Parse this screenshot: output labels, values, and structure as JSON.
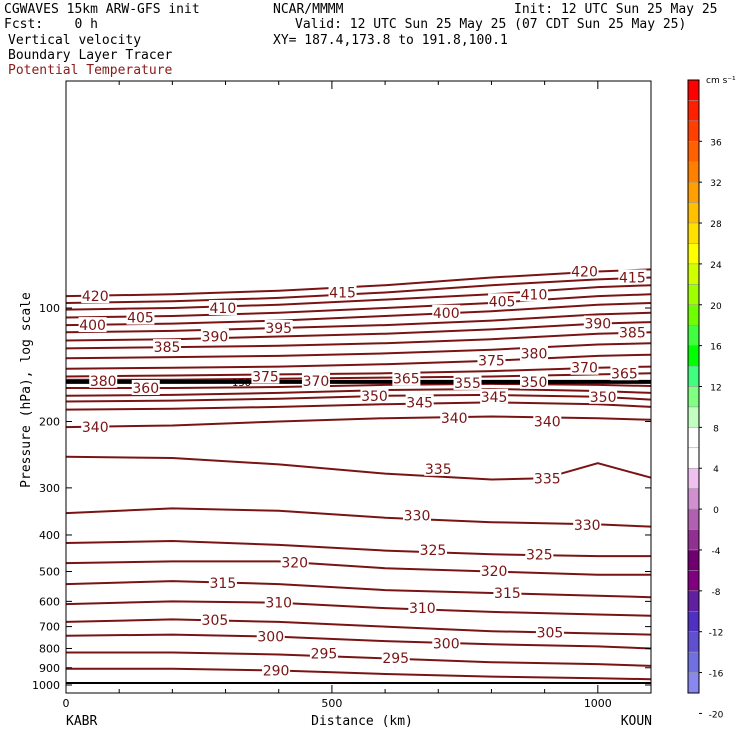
{
  "header": {
    "model": "CGWAVES 15km ARW-GFS init",
    "fcst": "Fcst:    0 h",
    "org": "NCAR/MMMM",
    "init": "Init: 12 UTC Sun 25 May 25",
    "valid": "Valid: 12 UTC Sun 25 May 25 (07 CDT Sun 25 May 25)",
    "xy": "XY= 187.4,173.8 to 191.8,100.1",
    "fields": [
      "Vertical velocity",
      "Boundary Layer Tracer",
      "Potential Temperature"
    ]
  },
  "colors": {
    "contour": "#7a1414",
    "tropopause": "#000000",
    "field3_label": "#8b1a1a"
  },
  "chart_data": {
    "type": "line",
    "title": "",
    "xlabel": "Distance (km)",
    "ylabel": "Pressure (hPa), log scale",
    "xlim": [
      0,
      1100
    ],
    "ylim": [
      1050,
      25
    ],
    "yscale": "log",
    "x_ticks": [
      0,
      500,
      1000
    ],
    "x_minor_step": 100,
    "y_ticks": [
      100,
      200,
      300,
      400,
      500,
      600,
      700,
      800,
      900,
      1000
    ],
    "left_endpoint": "KABR",
    "right_endpoint": "KOUN",
    "tropopause": {
      "x": [
        0,
        1100
      ],
      "y": [
        157,
        157
      ],
      "label": "150"
    },
    "series": [
      {
        "name": "420",
        "x": [
          0,
          200,
          400,
          600,
          800,
          1000,
          1100
        ],
        "y": [
          93,
          92,
          90,
          87,
          83,
          80,
          79
        ]
      },
      {
        "name": "415",
        "x": [
          0,
          200,
          400,
          600,
          800,
          1000,
          1100
        ],
        "y": [
          97,
          96,
          94,
          91,
          87,
          84,
          83
        ]
      },
      {
        "name": "410",
        "x": [
          0,
          200,
          400,
          600,
          800,
          1000,
          1100
        ],
        "y": [
          101,
          100,
          98,
          95,
          92,
          88,
          87
        ]
      },
      {
        "name": "405",
        "x": [
          0,
          200,
          400,
          600,
          800,
          1000,
          1100
        ],
        "y": [
          106,
          105,
          103,
          100,
          97,
          93,
          92
        ]
      },
      {
        "name": "400",
        "x": [
          0,
          200,
          400,
          600,
          800,
          1000,
          1100
        ],
        "y": [
          111,
          110,
          108,
          105,
          102,
          98,
          97
        ]
      },
      {
        "name": "395",
        "x": [
          0,
          200,
          400,
          600,
          800,
          1000,
          1100
        ],
        "y": [
          116,
          115,
          113,
          111,
          108,
          104,
          103
        ]
      },
      {
        "name": "390",
        "x": [
          0,
          200,
          400,
          600,
          800,
          1000,
          1100
        ],
        "y": [
          122,
          121,
          119,
          117,
          114,
          110,
          109
        ]
      },
      {
        "name": "385",
        "x": [
          0,
          200,
          400,
          600,
          800,
          1000,
          1100
        ],
        "y": [
          128,
          127,
          126,
          124,
          121,
          117,
          116
        ]
      },
      {
        "name": "380",
        "x": [
          0,
          200,
          400,
          600,
          800,
          1000,
          1100
        ],
        "y": [
          136,
          135,
          134,
          132,
          129,
          125,
          124
        ]
      },
      {
        "name": "375",
        "x": [
          0,
          200,
          400,
          600,
          800,
          1000,
          1100
        ],
        "y": [
          145,
          144,
          143,
          141,
          138,
          134,
          133
        ]
      },
      {
        "name": "370",
        "x": [
          0,
          200,
          400,
          600,
          800,
          1000,
          1100
        ],
        "y": [
          152,
          151,
          150,
          149,
          147,
          144,
          143
        ]
      },
      {
        "name": "365",
        "x": [
          0,
          200,
          400,
          600,
          800,
          1000,
          1100
        ],
        "y": [
          155,
          155,
          154,
          153,
          152,
          150,
          149
        ]
      },
      {
        "name": "360",
        "x": [
          0,
          200,
          400,
          600,
          800,
          1000,
          1100
        ],
        "y": [
          163,
          163,
          162,
          160,
          159,
          160,
          161
        ]
      },
      {
        "name": "355",
        "x": [
          0,
          200,
          400,
          600,
          800,
          1000,
          1100
        ],
        "y": [
          171,
          170,
          168,
          165,
          164,
          166,
          168
        ]
      },
      {
        "name": "350",
        "x": [
          0,
          200,
          400,
          600,
          800,
          1000,
          1100
        ],
        "y": [
          177,
          176,
          174,
          171,
          170,
          172,
          175
        ]
      },
      {
        "name": "345",
        "x": [
          0,
          200,
          400,
          600,
          800,
          1000,
          1100
        ],
        "y": [
          186,
          185,
          183,
          180,
          178,
          180,
          183
        ]
      },
      {
        "name": "340",
        "x": [
          0,
          200,
          400,
          600,
          800,
          1000,
          1100
        ],
        "y": [
          207,
          205,
          200,
          196,
          194,
          196,
          198
        ]
      },
      {
        "name": "335",
        "x": [
          0,
          200,
          400,
          600,
          800,
          900,
          1000,
          1100
        ],
        "y": [
          248,
          250,
          260,
          275,
          285,
          283,
          258,
          282
        ]
      },
      {
        "name": "330",
        "x": [
          0,
          200,
          400,
          600,
          800,
          1000,
          1100
        ],
        "y": [
          350,
          340,
          345,
          360,
          370,
          375,
          380
        ]
      },
      {
        "name": "325",
        "x": [
          0,
          200,
          400,
          600,
          800,
          1000,
          1100
        ],
        "y": [
          420,
          415,
          425,
          440,
          450,
          455,
          455
        ]
      },
      {
        "name": "320",
        "x": [
          0,
          200,
          400,
          600,
          800,
          1000,
          1100
        ],
        "y": [
          475,
          470,
          470,
          490,
          500,
          510,
          510
        ]
      },
      {
        "name": "315",
        "x": [
          0,
          200,
          400,
          600,
          800,
          1000,
          1100
        ],
        "y": [
          540,
          530,
          540,
          560,
          570,
          580,
          585
        ]
      },
      {
        "name": "310",
        "x": [
          0,
          200,
          400,
          600,
          800,
          1000,
          1100
        ],
        "y": [
          610,
          600,
          605,
          625,
          640,
          650,
          655
        ]
      },
      {
        "name": "305",
        "x": [
          0,
          200,
          400,
          600,
          800,
          1000,
          1100
        ],
        "y": [
          680,
          670,
          680,
          700,
          720,
          730,
          735
        ]
      },
      {
        "name": "300",
        "x": [
          0,
          200,
          400,
          600,
          800,
          1000,
          1100
        ],
        "y": [
          740,
          735,
          745,
          765,
          780,
          790,
          800
        ]
      },
      {
        "name": "295",
        "x": [
          0,
          200,
          400,
          600,
          800,
          1000,
          1100
        ],
        "y": [
          820,
          820,
          830,
          850,
          870,
          880,
          890
        ]
      },
      {
        "name": "290",
        "x": [
          0,
          200,
          400,
          600,
          800,
          1000,
          1100
        ],
        "y": [
          905,
          905,
          915,
          935,
          950,
          960,
          965
        ]
      }
    ],
    "labels": [
      {
        "text": "420",
        "x": 55,
        "y": 93
      },
      {
        "text": "405",
        "x": 140,
        "y": 106
      },
      {
        "text": "410",
        "x": 295,
        "y": 100
      },
      {
        "text": "415",
        "x": 520,
        "y": 91
      },
      {
        "text": "420",
        "x": 975,
        "y": 80
      },
      {
        "text": "415",
        "x": 1065,
        "y": 83
      },
      {
        "text": "400",
        "x": 50,
        "y": 111
      },
      {
        "text": "390",
        "x": 280,
        "y": 119
      },
      {
        "text": "395",
        "x": 400,
        "y": 113
      },
      {
        "text": "400",
        "x": 715,
        "y": 103
      },
      {
        "text": "405",
        "x": 820,
        "y": 96
      },
      {
        "text": "410",
        "x": 880,
        "y": 92
      },
      {
        "text": "390",
        "x": 1000,
        "y": 110
      },
      {
        "text": "385",
        "x": 1065,
        "y": 116
      },
      {
        "text": "385",
        "x": 190,
        "y": 127
      },
      {
        "text": "375",
        "x": 800,
        "y": 138
      },
      {
        "text": "380",
        "x": 880,
        "y": 132
      },
      {
        "text": "370",
        "x": 975,
        "y": 144
      },
      {
        "text": "365",
        "x": 1050,
        "y": 149
      },
      {
        "text": "380",
        "x": 70,
        "y": 156
      },
      {
        "text": "375",
        "x": 375,
        "y": 152
      },
      {
        "text": "370",
        "x": 470,
        "y": 156
      },
      {
        "text": "365",
        "x": 640,
        "y": 154
      },
      {
        "text": "355",
        "x": 755,
        "y": 158
      },
      {
        "text": "350",
        "x": 880,
        "y": 157
      },
      {
        "text": "360",
        "x": 150,
        "y": 163
      },
      {
        "text": "350",
        "x": 580,
        "y": 171
      },
      {
        "text": "345",
        "x": 665,
        "y": 178
      },
      {
        "text": "345",
        "x": 805,
        "y": 172
      },
      {
        "text": "350",
        "x": 1010,
        "y": 172
      },
      {
        "text": "340",
        "x": 55,
        "y": 207
      },
      {
        "text": "340",
        "x": 730,
        "y": 196
      },
      {
        "text": "340",
        "x": 905,
        "y": 200
      },
      {
        "text": "335",
        "x": 700,
        "y": 267
      },
      {
        "text": "335",
        "x": 905,
        "y": 283
      },
      {
        "text": "330",
        "x": 660,
        "y": 355
      },
      {
        "text": "330",
        "x": 980,
        "y": 376
      },
      {
        "text": "325",
        "x": 690,
        "y": 438
      },
      {
        "text": "325",
        "x": 890,
        "y": 451
      },
      {
        "text": "320",
        "x": 430,
        "y": 473
      },
      {
        "text": "320",
        "x": 805,
        "y": 498
      },
      {
        "text": "315",
        "x": 295,
        "y": 536
      },
      {
        "text": "315",
        "x": 830,
        "y": 570
      },
      {
        "text": "310",
        "x": 400,
        "y": 605
      },
      {
        "text": "310",
        "x": 670,
        "y": 625
      },
      {
        "text": "305",
        "x": 280,
        "y": 672
      },
      {
        "text": "305",
        "x": 910,
        "y": 725
      },
      {
        "text": "300",
        "x": 385,
        "y": 743
      },
      {
        "text": "300",
        "x": 715,
        "y": 775
      },
      {
        "text": "295",
        "x": 485,
        "y": 825
      },
      {
        "text": "295",
        "x": 620,
        "y": 847
      },
      {
        "text": "290",
        "x": 395,
        "y": 915
      }
    ]
  },
  "colorbar": {
    "unit": "cm s⁻¹",
    "tick_labels": [
      "36",
      "32",
      "28",
      "24",
      "20",
      "16",
      "12",
      "8",
      "4",
      "0",
      "-4",
      "-8",
      "-12",
      "-16",
      "-20"
    ],
    "colors": [
      "#ff0000",
      "#ff2000",
      "#ff4000",
      "#ff6000",
      "#ff8000",
      "#ffa000",
      "#ffc000",
      "#ffe000",
      "#ffff00",
      "#d0ff00",
      "#a0ff00",
      "#70ff00",
      "#40ff40",
      "#00ff00",
      "#40ff80",
      "#80ff80",
      "#c0ffc0",
      "#ffffff",
      "#ffffff",
      "#f0c0f0",
      "#d090d0",
      "#b060b0",
      "#903090",
      "#700070",
      "#800080",
      "#6020a0",
      "#5030c0",
      "#6050d0",
      "#7070e0",
      "#8888f0"
    ]
  }
}
